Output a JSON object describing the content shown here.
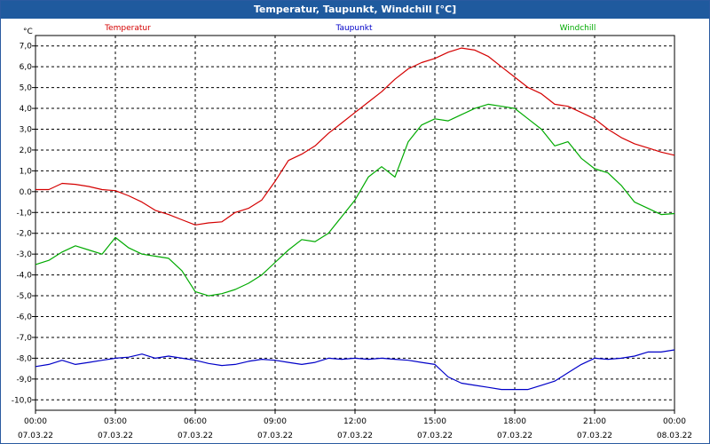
{
  "window": {
    "title": "Temperatur, Taupunkt, Windchill [°C]"
  },
  "chart_data": {
    "type": "line",
    "unit_label": "°C",
    "xlabel": "",
    "ylabel": "",
    "ylim": [
      -10.5,
      7.5
    ],
    "y_ticks": [
      7,
      6,
      5,
      4,
      3,
      2,
      1,
      0,
      -1,
      -2,
      -3,
      -4,
      -5,
      -6,
      -7,
      -8,
      -9,
      -10
    ],
    "y_tick_labels": [
      "7,0",
      "6,0",
      "5,0",
      "4,0",
      "3,0",
      "2,0",
      "1,0",
      "0.0",
      "-1,0",
      "-2,0",
      "-3,0",
      "-4,0",
      "-5,0",
      "-6,0",
      "-7,0",
      "-8,0",
      "-9,0",
      "-10,0"
    ],
    "xlim": [
      0,
      24
    ],
    "x_ticks": [
      {
        "hour": 0,
        "time": "00:00",
        "date": "07.03.22"
      },
      {
        "hour": 3,
        "time": "03:00",
        "date": "07.03.22"
      },
      {
        "hour": 6,
        "time": "06:00",
        "date": "07.03.22"
      },
      {
        "hour": 9,
        "time": "09:00",
        "date": "07.03.22"
      },
      {
        "hour": 12,
        "time": "12:00",
        "date": "07.03.22"
      },
      {
        "hour": 15,
        "time": "15:00",
        "date": "07.03.22"
      },
      {
        "hour": 18,
        "time": "18:00",
        "date": "07.03.22"
      },
      {
        "hour": 21,
        "time": "21:00",
        "date": "07.03.22"
      },
      {
        "hour": 24,
        "time": "00:00",
        "date": "08.03.22"
      }
    ],
    "grid": true,
    "legend_placement": "top",
    "series": [
      {
        "name": "Temperatur",
        "color": "#d40000",
        "x": [
          0,
          0.5,
          1,
          1.5,
          2,
          2.5,
          3,
          3.5,
          4,
          4.5,
          5,
          5.5,
          6,
          6.5,
          7,
          7.5,
          8,
          8.5,
          9,
          9.5,
          10,
          10.5,
          11,
          11.5,
          12,
          12.5,
          13,
          13.5,
          14,
          14.5,
          15,
          15.5,
          16,
          16.5,
          17,
          17.5,
          18,
          18.5,
          19,
          19.5,
          20,
          20.5,
          21,
          21.5,
          22,
          22.5,
          23,
          23.5,
          24
        ],
        "values": [
          0.1,
          0.1,
          0.4,
          0.35,
          0.25,
          0.1,
          0.05,
          -0.2,
          -0.5,
          -0.9,
          -1.1,
          -1.35,
          -1.6,
          -1.5,
          -1.45,
          -1.0,
          -0.8,
          -0.4,
          0.5,
          1.5,
          1.8,
          2.2,
          2.8,
          3.3,
          3.8,
          4.3,
          4.8,
          5.4,
          5.9,
          6.2,
          6.4,
          6.7,
          6.9,
          6.8,
          6.5,
          6.0,
          5.5,
          5.0,
          4.7,
          4.2,
          4.1,
          3.8,
          3.5,
          3.0,
          2.6,
          2.3,
          2.1,
          1.9,
          1.75
        ]
      },
      {
        "name": "Taupunkt",
        "color": "#0000c8",
        "x": [
          0,
          0.5,
          1,
          1.5,
          2,
          2.5,
          3,
          3.5,
          4,
          4.5,
          5,
          5.5,
          6,
          6.5,
          7,
          7.5,
          8,
          8.5,
          9,
          9.5,
          10,
          10.5,
          11,
          11.5,
          12,
          12.5,
          13,
          13.5,
          14,
          14.5,
          15,
          15.5,
          16,
          16.5,
          17,
          17.5,
          18,
          18.5,
          19,
          19.5,
          20,
          20.5,
          21,
          21.5,
          22,
          22.5,
          23,
          23.5,
          24
        ],
        "values": [
          -8.4,
          -8.3,
          -8.1,
          -8.3,
          -8.2,
          -8.1,
          -8.0,
          -7.95,
          -7.8,
          -8.0,
          -7.9,
          -8.0,
          -8.1,
          -8.25,
          -8.35,
          -8.3,
          -8.15,
          -8.05,
          -8.1,
          -8.2,
          -8.3,
          -8.2,
          -8.0,
          -8.05,
          -8.0,
          -8.05,
          -8.0,
          -8.05,
          -8.1,
          -8.2,
          -8.3,
          -8.9,
          -9.2,
          -9.3,
          -9.4,
          -9.5,
          -9.5,
          -9.5,
          -9.3,
          -9.1,
          -8.7,
          -8.3,
          -8.0,
          -8.05,
          -8.0,
          -7.9,
          -7.7,
          -7.7,
          -7.6
        ]
      },
      {
        "name": "Windchill",
        "color": "#00aa00",
        "x": [
          0,
          0.5,
          1,
          1.5,
          2,
          2.5,
          3,
          3.5,
          4,
          4.5,
          5,
          5.5,
          6,
          6.5,
          7,
          7.5,
          8,
          8.5,
          9,
          9.5,
          10,
          10.5,
          11,
          11.5,
          12,
          12.5,
          13,
          13.5,
          14,
          14.5,
          15,
          15.5,
          16,
          16.5,
          17,
          17.5,
          18,
          18.5,
          19,
          19.5,
          20,
          20.5,
          21,
          21.5,
          22,
          22.5,
          23,
          23.5,
          24
        ],
        "values": [
          -3.5,
          -3.3,
          -2.9,
          -2.6,
          -2.8,
          -3.0,
          -2.2,
          -2.7,
          -3.0,
          -3.1,
          -3.2,
          -3.8,
          -4.8,
          -5.0,
          -4.9,
          -4.7,
          -4.4,
          -4.0,
          -3.4,
          -2.8,
          -2.3,
          -2.4,
          -2.0,
          -1.2,
          -0.4,
          0.7,
          1.2,
          0.7,
          2.4,
          3.2,
          3.5,
          3.4,
          3.7,
          4.0,
          4.2,
          4.1,
          4.0,
          3.5,
          3.0,
          2.2,
          2.4,
          1.6,
          1.1,
          0.9,
          0.3,
          -0.5,
          -0.8,
          -1.1,
          -1.05
        ]
      }
    ]
  }
}
